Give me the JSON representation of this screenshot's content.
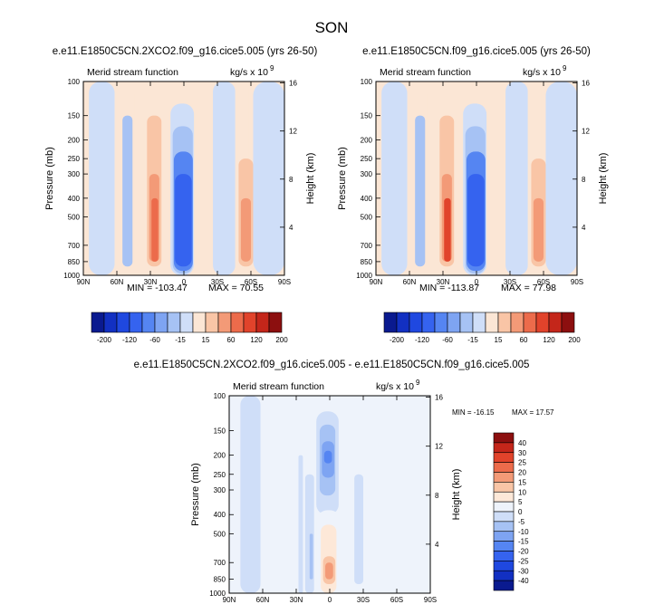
{
  "figure": {
    "title": "SON"
  },
  "chart_data": [
    {
      "type": "heatmap",
      "id": "top-left",
      "title": "e.e11.E1850C5CN.2XCO2.f09_g16.cice5.005 (yrs 26-50)",
      "left_label": "Merid stream function",
      "right_label": "kg/s x 10",
      "right_label_exp": "9",
      "xlabel": "",
      "ylabel": "Pressure (mb)",
      "y2label": "Height (km)",
      "x_ticks": [
        "90N",
        "60N",
        "30N",
        "0",
        "30S",
        "60S",
        "90S"
      ],
      "y_ticks": [
        "100",
        "150",
        "200",
        "250",
        "300",
        "400",
        "500",
        "700",
        "850",
        "1000"
      ],
      "y2_ticks": [
        "16",
        "12",
        "8",
        "4"
      ],
      "min_label": "MIN = -103.47",
      "max_label": "MAX =  70.55",
      "min": -103.47,
      "max": 70.55,
      "cells": [
        {
          "lat": [
            90,
            85
          ],
          "p": [
            100,
            1000
          ],
          "value": 0.5
        },
        {
          "lat": [
            85,
            62
          ],
          "p": [
            100,
            1000
          ],
          "value": -3
        },
        {
          "lat": [
            55,
            46
          ],
          "p": [
            150,
            900
          ],
          "value": -20
        },
        {
          "lat": [
            44,
            20
          ],
          "p": [
            100,
            1000
          ],
          "value": 4
        },
        {
          "lat": [
            33,
            20
          ],
          "p": [
            150,
            900
          ],
          "value": 20
        },
        {
          "lat": [
            31,
            22
          ],
          "p": [
            300,
            850
          ],
          "value": 40
        },
        {
          "lat": [
            29,
            23
          ],
          "p": [
            400,
            850
          ],
          "value": 60
        },
        {
          "lat": [
            20,
            13
          ],
          "p": [
            100,
            1000
          ],
          "value": 1
        },
        {
          "lat": [
            12,
            -9
          ],
          "p": [
            130,
            1000
          ],
          "value": -10
        },
        {
          "lat": [
            10,
            -8
          ],
          "p": [
            170,
            980
          ],
          "value": -40
        },
        {
          "lat": [
            9,
            -8
          ],
          "p": [
            230,
            950
          ],
          "value": -80
        },
        {
          "lat": [
            8,
            -7
          ],
          "p": [
            300,
            900
          ],
          "value": -100
        },
        {
          "lat": [
            -10,
            -22
          ],
          "p": [
            100,
            1000
          ],
          "value": 2
        },
        {
          "lat": [
            -26,
            -46
          ],
          "p": [
            100,
            1000
          ],
          "value": -2
        },
        {
          "lat": [
            -46,
            -58
          ],
          "p": [
            100,
            1000
          ],
          "value": 3
        },
        {
          "lat": [
            -49,
            -62
          ],
          "p": [
            250,
            900
          ],
          "value": 20
        },
        {
          "lat": [
            -51,
            -60
          ],
          "p": [
            400,
            850
          ],
          "value": 40
        },
        {
          "lat": [
            -62,
            -90
          ],
          "p": [
            100,
            1000
          ],
          "value": -1
        }
      ]
    },
    {
      "type": "heatmap",
      "id": "top-right",
      "title": "e.e11.E1850C5CN.f09_g16.cice5.005 (yrs 26-50)",
      "left_label": "Merid stream function",
      "right_label": "kg/s x 10",
      "right_label_exp": "9",
      "xlabel": "",
      "ylabel": "Pressure (mb)",
      "y2label": "Height (km)",
      "x_ticks": [
        "90N",
        "60N",
        "30N",
        "0",
        "30S",
        "60S",
        "90S"
      ],
      "y_ticks": [
        "100",
        "150",
        "200",
        "250",
        "300",
        "400",
        "500",
        "700",
        "850",
        "1000"
      ],
      "y2_ticks": [
        "16",
        "12",
        "8",
        "4"
      ],
      "min_label": "MIN = -113.87",
      "max_label": "MAX =  77.98",
      "min": -113.87,
      "max": 77.98,
      "cells": [
        {
          "lat": [
            90,
            85
          ],
          "p": [
            100,
            1000
          ],
          "value": 0.5
        },
        {
          "lat": [
            85,
            62
          ],
          "p": [
            100,
            1000
          ],
          "value": -3
        },
        {
          "lat": [
            55,
            46
          ],
          "p": [
            150,
            900
          ],
          "value": -20
        },
        {
          "lat": [
            44,
            20
          ],
          "p": [
            100,
            1000
          ],
          "value": 4
        },
        {
          "lat": [
            33,
            20
          ],
          "p": [
            150,
            900
          ],
          "value": 20
        },
        {
          "lat": [
            31,
            22
          ],
          "p": [
            300,
            850
          ],
          "value": 40
        },
        {
          "lat": [
            29,
            23
          ],
          "p": [
            400,
            850
          ],
          "value": 80
        },
        {
          "lat": [
            20,
            13
          ],
          "p": [
            100,
            1000
          ],
          "value": 1
        },
        {
          "lat": [
            12,
            -9
          ],
          "p": [
            130,
            1000
          ],
          "value": -10
        },
        {
          "lat": [
            10,
            -8
          ],
          "p": [
            170,
            980
          ],
          "value": -40
        },
        {
          "lat": [
            9,
            -8
          ],
          "p": [
            230,
            950
          ],
          "value": -80
        },
        {
          "lat": [
            8,
            -7
          ],
          "p": [
            300,
            900
          ],
          "value": -120
        },
        {
          "lat": [
            -10,
            -22
          ],
          "p": [
            100,
            1000
          ],
          "value": 2
        },
        {
          "lat": [
            -26,
            -46
          ],
          "p": [
            100,
            1000
          ],
          "value": -2
        },
        {
          "lat": [
            -46,
            -58
          ],
          "p": [
            100,
            1000
          ],
          "value": 3
        },
        {
          "lat": [
            -49,
            -62
          ],
          "p": [
            250,
            900
          ],
          "value": 20
        },
        {
          "lat": [
            -51,
            -60
          ],
          "p": [
            400,
            850
          ],
          "value": 40
        },
        {
          "lat": [
            -62,
            -90
          ],
          "p": [
            100,
            1000
          ],
          "value": -1
        }
      ]
    },
    {
      "type": "heatmap",
      "id": "bottom-diff",
      "title": "e.e11.E1850C5CN.2XCO2.f09_g16.cice5.005 - e.e11.E1850C5CN.f09_g16.cice5.005",
      "left_label": "Merid stream function",
      "right_label": "kg/s x 10",
      "right_label_exp": "9",
      "xlabel": "",
      "ylabel": "Pressure (mb)",
      "y2label": "Height (km)",
      "x_ticks": [
        "90N",
        "60N",
        "30N",
        "0",
        "30S",
        "60S",
        "90S"
      ],
      "y_ticks": [
        "100",
        "150",
        "200",
        "250",
        "300",
        "400",
        "500",
        "700",
        "850",
        "1000"
      ],
      "y2_ticks": [
        "16",
        "12",
        "8",
        "4"
      ],
      "min_label": "MIN = -16.15",
      "max_label": "MAX =  17.57",
      "min": -16.15,
      "max": 17.57,
      "cells": [
        {
          "lat": [
            90,
            80
          ],
          "p": [
            100,
            1000
          ],
          "value": 1
        },
        {
          "lat": [
            80,
            62
          ],
          "p": [
            100,
            1000
          ],
          "value": -1
        },
        {
          "lat": [
            62,
            30
          ],
          "p": [
            100,
            1000
          ],
          "value": 1
        },
        {
          "lat": [
            33,
            28
          ],
          "p": [
            280,
            850
          ],
          "value": 3
        },
        {
          "lat": [
            28,
            24
          ],
          "p": [
            200,
            1000
          ],
          "value": -1
        },
        {
          "lat": [
            22,
            14
          ],
          "p": [
            250,
            1000
          ],
          "value": -2
        },
        {
          "lat": [
            18,
            15
          ],
          "p": [
            500,
            850
          ],
          "value": -8
        },
        {
          "lat": [
            12,
            -8
          ],
          "p": [
            120,
            400
          ],
          "value": -3
        },
        {
          "lat": [
            9,
            -5
          ],
          "p": [
            140,
            320
          ],
          "value": -8
        },
        {
          "lat": [
            7,
            -4
          ],
          "p": [
            170,
            260
          ],
          "value": -12
        },
        {
          "lat": [
            5,
            -2
          ],
          "p": [
            190,
            220
          ],
          "value": -16
        },
        {
          "lat": [
            12,
            -10
          ],
          "p": [
            380,
            1000
          ],
          "value": 3
        },
        {
          "lat": [
            8,
            -6
          ],
          "p": [
            450,
            1000
          ],
          "value": 8
        },
        {
          "lat": [
            6,
            -5
          ],
          "p": [
            650,
            900
          ],
          "value": 14
        },
        {
          "lat": [
            4,
            -3
          ],
          "p": [
            700,
            850
          ],
          "value": 17
        },
        {
          "lat": [
            -10,
            -20
          ],
          "p": [
            200,
            700
          ],
          "value": 1
        },
        {
          "lat": [
            -22,
            -30
          ],
          "p": [
            250,
            900
          ],
          "value": -1
        },
        {
          "lat": [
            -30,
            -90
          ],
          "p": [
            100,
            1000
          ],
          "value": 1
        }
      ]
    }
  ],
  "colorbars": {
    "absolute": {
      "colors": [
        "#0a1a8f",
        "#1230c2",
        "#1f48e0",
        "#3563ef",
        "#5585f2",
        "#7ea4f2",
        "#a6c2f4",
        "#cfdef8",
        "#fbe6d5",
        "#f9c5a6",
        "#f39a77",
        "#ec6b4b",
        "#e1432b",
        "#c4261a",
        "#8c0f0f"
      ],
      "labels": [
        "-200",
        "-120",
        "-60",
        "-15",
        "15",
        "60",
        "120",
        "200"
      ],
      "thresholds": [
        -200,
        -160,
        -120,
        -80,
        -60,
        -40,
        -15,
        0,
        15,
        40,
        60,
        80,
        120,
        160,
        200
      ]
    },
    "difference": {
      "colors": [
        "#0a1a8f",
        "#1230c2",
        "#1f48e0",
        "#3563ef",
        "#5585f2",
        "#7ea4f2",
        "#a6c2f4",
        "#cfdef8",
        "#eef3fb",
        "#fde8d8",
        "#f9c5a6",
        "#f39a77",
        "#ec6b4b",
        "#e1432b",
        "#c4261a",
        "#8c0f0f"
      ],
      "labels": [
        "40",
        "30",
        "25",
        "20",
        "15",
        "10",
        "5",
        "0",
        "-5",
        "-10",
        "-15",
        "-20",
        "-25",
        "-30",
        "-40"
      ],
      "thresholds": [
        -40,
        -30,
        -25,
        -20,
        -15,
        -10,
        -5,
        0,
        5,
        10,
        15,
        20,
        25,
        30,
        40
      ]
    }
  }
}
